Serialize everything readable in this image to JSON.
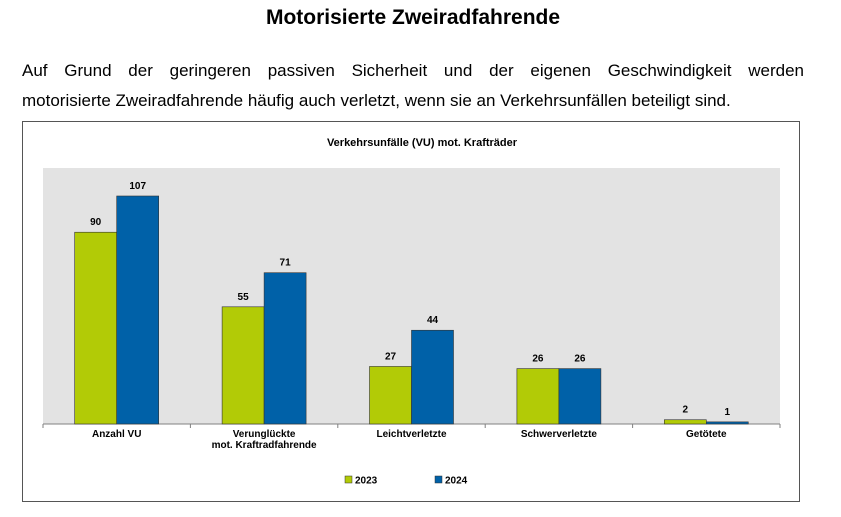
{
  "page": {
    "heading": "Motorisierte Zweiradfahrende",
    "paragraph_line1": "Auf Grund der geringeren passiven Sicherheit und der eigenen Geschwindigkeit werden",
    "paragraph_line2": "motorisierte Zweiradfahrende häufig auch verletzt, wenn sie an Verkehrsunfällen beteiligt sind."
  },
  "colors": {
    "plot_background": "#e3e3e3",
    "series_2023": "#b2cb06",
    "series_2024": "#0061a8"
  },
  "chart_data": {
    "type": "bar",
    "title": "Verkehrsunfälle (VU) mot. Krafträder",
    "categories": [
      [
        "Anzahl VU"
      ],
      [
        "Verunglückte",
        "mot. Kraftradfahrende"
      ],
      [
        "Leichtverletzte"
      ],
      [
        "Schwerverletzte"
      ],
      [
        "Getötete"
      ]
    ],
    "series": [
      {
        "name": "2023",
        "values": [
          90,
          55,
          27,
          26,
          2
        ],
        "color": "#b2cb06"
      },
      {
        "name": "2024",
        "values": [
          107,
          71,
          44,
          26,
          1
        ],
        "color": "#0061a8"
      }
    ],
    "ylim": [
      0,
      120
    ],
    "grid": false,
    "legend_position": "bottom-center",
    "data_labels": true
  }
}
